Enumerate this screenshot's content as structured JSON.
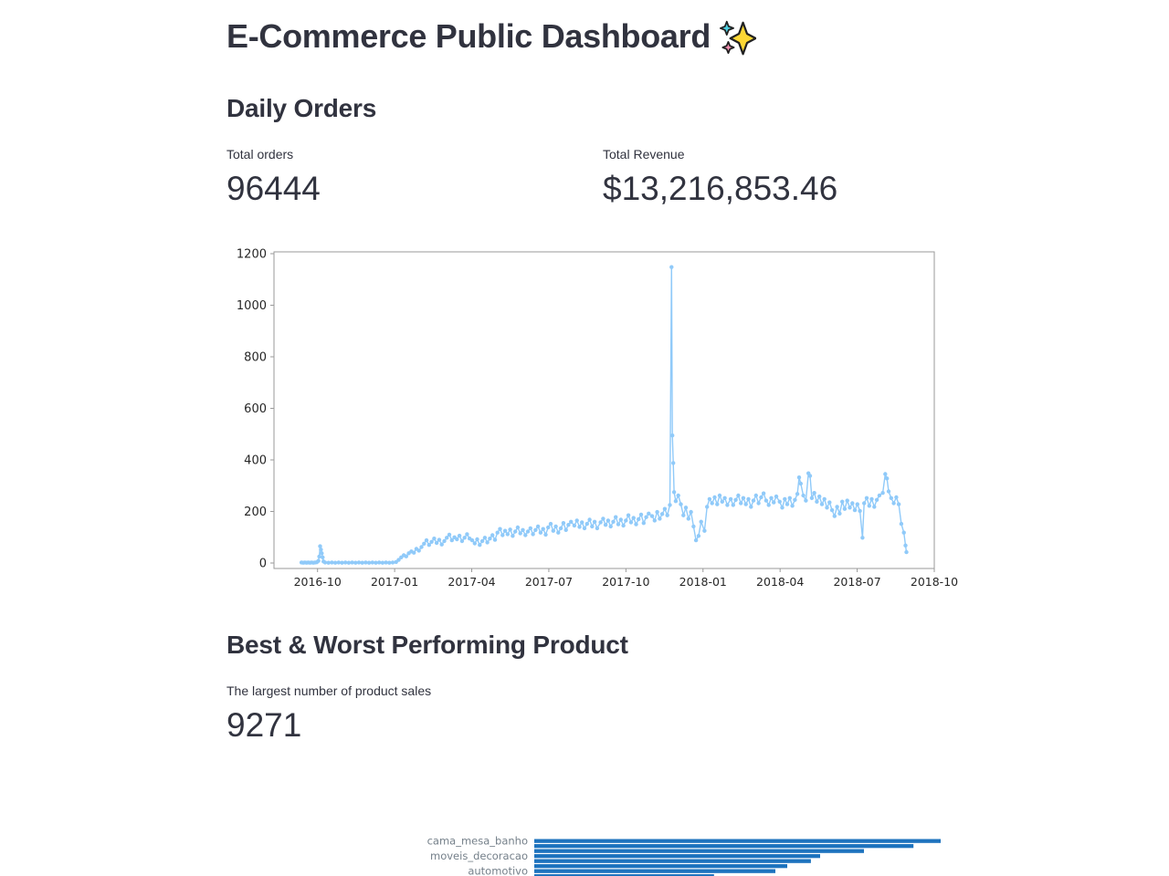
{
  "app": {
    "title": "E-Commerce Public Dashboard",
    "title_emoji": "sparkles"
  },
  "daily_orders": {
    "heading": "Daily Orders",
    "metrics": {
      "total_orders": {
        "label": "Total orders",
        "value": "96444"
      },
      "total_revenue": {
        "label": "Total Revenue",
        "value": "$13,216,853.46"
      }
    }
  },
  "best_worst": {
    "heading": "Best & Worst Performing Product",
    "metric": {
      "label": "The largest number of product sales",
      "value": "9271"
    }
  },
  "chart_data": [
    {
      "type": "line",
      "title": "",
      "color": "#90CAF9",
      "axis_color": "#9a9a9a",
      "tick_label_color": "#262626",
      "x_ticks": [
        "2016-10",
        "2017-01",
        "2017-04",
        "2017-07",
        "2017-10",
        "2018-01",
        "2018-04",
        "2018-07",
        "2018-10"
      ],
      "y_ticks": [
        0,
        200,
        400,
        600,
        800,
        1000,
        1200
      ],
      "ylim": [
        -20,
        1205
      ],
      "xlim": [
        "2016-08-20",
        "2018-10-01"
      ],
      "grid": false,
      "legend": "none",
      "points": [
        [
          "2016-09-12",
          2
        ],
        [
          "2016-09-14",
          1
        ],
        [
          "2016-09-16",
          2
        ],
        [
          "2016-09-18",
          1
        ],
        [
          "2016-09-20",
          2
        ],
        [
          "2016-09-22",
          1
        ],
        [
          "2016-09-24",
          2
        ],
        [
          "2016-09-26",
          1
        ],
        [
          "2016-09-28",
          2
        ],
        [
          "2016-09-30",
          3
        ],
        [
          "2016-10-02",
          8
        ],
        [
          "2016-10-03",
          25
        ],
        [
          "2016-10-04",
          65
        ],
        [
          "2016-10-05",
          52
        ],
        [
          "2016-10-06",
          38
        ],
        [
          "2016-10-07",
          22
        ],
        [
          "2016-10-08",
          6
        ],
        [
          "2016-10-10",
          2
        ],
        [
          "2016-10-14",
          1
        ],
        [
          "2016-10-18",
          2
        ],
        [
          "2016-10-22",
          1
        ],
        [
          "2016-10-26",
          2
        ],
        [
          "2016-10-30",
          1
        ],
        [
          "2016-11-03",
          2
        ],
        [
          "2016-11-07",
          1
        ],
        [
          "2016-11-11",
          2
        ],
        [
          "2016-11-15",
          1
        ],
        [
          "2016-11-19",
          2
        ],
        [
          "2016-11-23",
          1
        ],
        [
          "2016-11-27",
          2
        ],
        [
          "2016-12-01",
          1
        ],
        [
          "2016-12-05",
          2
        ],
        [
          "2016-12-09",
          1
        ],
        [
          "2016-12-13",
          2
        ],
        [
          "2016-12-17",
          1
        ],
        [
          "2016-12-21",
          2
        ],
        [
          "2016-12-25",
          1
        ],
        [
          "2016-12-29",
          2
        ],
        [
          "2017-01-02",
          4
        ],
        [
          "2017-01-05",
          12
        ],
        [
          "2017-01-08",
          22
        ],
        [
          "2017-01-11",
          30
        ],
        [
          "2017-01-14",
          26
        ],
        [
          "2017-01-17",
          38
        ],
        [
          "2017-01-20",
          45
        ],
        [
          "2017-01-23",
          40
        ],
        [
          "2017-01-26",
          55
        ],
        [
          "2017-01-29",
          48
        ],
        [
          "2017-02-01",
          62
        ],
        [
          "2017-02-04",
          75
        ],
        [
          "2017-02-07",
          88
        ],
        [
          "2017-02-10",
          70
        ],
        [
          "2017-02-13",
          82
        ],
        [
          "2017-02-16",
          95
        ],
        [
          "2017-02-19",
          78
        ],
        [
          "2017-02-22",
          90
        ],
        [
          "2017-02-25",
          72
        ],
        [
          "2017-02-28",
          85
        ],
        [
          "2017-03-03",
          98
        ],
        [
          "2017-03-06",
          110
        ],
        [
          "2017-03-09",
          88
        ],
        [
          "2017-03-12",
          100
        ],
        [
          "2017-03-15",
          92
        ],
        [
          "2017-03-18",
          106
        ],
        [
          "2017-03-21",
          85
        ],
        [
          "2017-03-24",
          98
        ],
        [
          "2017-03-27",
          112
        ],
        [
          "2017-03-30",
          95
        ],
        [
          "2017-04-02",
          88
        ],
        [
          "2017-04-05",
          76
        ],
        [
          "2017-04-08",
          92
        ],
        [
          "2017-04-11",
          70
        ],
        [
          "2017-04-14",
          85
        ],
        [
          "2017-04-17",
          98
        ],
        [
          "2017-04-20",
          80
        ],
        [
          "2017-04-23",
          95
        ],
        [
          "2017-04-26",
          108
        ],
        [
          "2017-04-29",
          90
        ],
        [
          "2017-05-02",
          118
        ],
        [
          "2017-05-05",
          132
        ],
        [
          "2017-05-08",
          108
        ],
        [
          "2017-05-11",
          125
        ],
        [
          "2017-05-14",
          112
        ],
        [
          "2017-05-17",
          130
        ],
        [
          "2017-05-20",
          105
        ],
        [
          "2017-05-23",
          122
        ],
        [
          "2017-05-26",
          138
        ],
        [
          "2017-05-29",
          115
        ],
        [
          "2017-06-01",
          128
        ],
        [
          "2017-06-04",
          108
        ],
        [
          "2017-06-07",
          122
        ],
        [
          "2017-06-10",
          135
        ],
        [
          "2017-06-13",
          112
        ],
        [
          "2017-06-16",
          128
        ],
        [
          "2017-06-19",
          142
        ],
        [
          "2017-06-22",
          118
        ],
        [
          "2017-06-25",
          132
        ],
        [
          "2017-06-28",
          110
        ],
        [
          "2017-07-01",
          138
        ],
        [
          "2017-07-04",
          152
        ],
        [
          "2017-07-07",
          125
        ],
        [
          "2017-07-10",
          142
        ],
        [
          "2017-07-13",
          118
        ],
        [
          "2017-07-16",
          135
        ],
        [
          "2017-07-19",
          155
        ],
        [
          "2017-07-22",
          128
        ],
        [
          "2017-07-25",
          148
        ],
        [
          "2017-07-28",
          160
        ],
        [
          "2017-08-01",
          145
        ],
        [
          "2017-08-04",
          165
        ],
        [
          "2017-08-07",
          140
        ],
        [
          "2017-08-10",
          158
        ],
        [
          "2017-08-13",
          135
        ],
        [
          "2017-08-16",
          152
        ],
        [
          "2017-08-19",
          168
        ],
        [
          "2017-08-22",
          142
        ],
        [
          "2017-08-25",
          160
        ],
        [
          "2017-08-28",
          135
        ],
        [
          "2017-09-01",
          158
        ],
        [
          "2017-09-04",
          172
        ],
        [
          "2017-09-07",
          148
        ],
        [
          "2017-09-10",
          165
        ],
        [
          "2017-09-13",
          142
        ],
        [
          "2017-09-16",
          160
        ],
        [
          "2017-09-19",
          178
        ],
        [
          "2017-09-22",
          150
        ],
        [
          "2017-09-25",
          168
        ],
        [
          "2017-09-28",
          145
        ],
        [
          "2017-10-01",
          165
        ],
        [
          "2017-10-04",
          185
        ],
        [
          "2017-10-07",
          158
        ],
        [
          "2017-10-10",
          175
        ],
        [
          "2017-10-13",
          150
        ],
        [
          "2017-10-16",
          170
        ],
        [
          "2017-10-19",
          188
        ],
        [
          "2017-10-22",
          155
        ],
        [
          "2017-10-25",
          178
        ],
        [
          "2017-10-28",
          192
        ],
        [
          "2017-11-01",
          182
        ],
        [
          "2017-11-04",
          165
        ],
        [
          "2017-11-07",
          198
        ],
        [
          "2017-11-10",
          172
        ],
        [
          "2017-11-13",
          190
        ],
        [
          "2017-11-16",
          210
        ],
        [
          "2017-11-19",
          185
        ],
        [
          "2017-11-22",
          225
        ],
        [
          "2017-11-24",
          1148
        ],
        [
          "2017-11-25",
          495
        ],
        [
          "2017-11-26",
          388
        ],
        [
          "2017-11-27",
          275
        ],
        [
          "2017-11-29",
          240
        ],
        [
          "2017-12-02",
          262
        ],
        [
          "2017-12-05",
          228
        ],
        [
          "2017-12-08",
          185
        ],
        [
          "2017-12-11",
          215
        ],
        [
          "2017-12-14",
          172
        ],
        [
          "2017-12-17",
          198
        ],
        [
          "2017-12-20",
          142
        ],
        [
          "2017-12-23",
          88
        ],
        [
          "2017-12-26",
          105
        ],
        [
          "2017-12-29",
          160
        ],
        [
          "2018-01-02",
          125
        ],
        [
          "2018-01-05",
          218
        ],
        [
          "2018-01-08",
          248
        ],
        [
          "2018-01-11",
          232
        ],
        [
          "2018-01-14",
          255
        ],
        [
          "2018-01-17",
          228
        ],
        [
          "2018-01-20",
          262
        ],
        [
          "2018-01-23",
          238
        ],
        [
          "2018-01-26",
          252
        ],
        [
          "2018-01-29",
          225
        ],
        [
          "2018-02-02",
          248
        ],
        [
          "2018-02-05",
          225
        ],
        [
          "2018-02-08",
          245
        ],
        [
          "2018-02-11",
          262
        ],
        [
          "2018-02-14",
          232
        ],
        [
          "2018-02-17",
          252
        ],
        [
          "2018-02-20",
          228
        ],
        [
          "2018-02-23",
          248
        ],
        [
          "2018-02-26",
          218
        ],
        [
          "2018-03-01",
          242
        ],
        [
          "2018-03-04",
          262
        ],
        [
          "2018-03-07",
          232
        ],
        [
          "2018-03-10",
          255
        ],
        [
          "2018-03-13",
          270
        ],
        [
          "2018-03-16",
          242
        ],
        [
          "2018-03-19",
          225
        ],
        [
          "2018-03-22",
          252
        ],
        [
          "2018-03-25",
          235
        ],
        [
          "2018-03-28",
          258
        ],
        [
          "2018-04-01",
          238
        ],
        [
          "2018-04-04",
          215
        ],
        [
          "2018-04-07",
          248
        ],
        [
          "2018-04-10",
          228
        ],
        [
          "2018-04-13",
          252
        ],
        [
          "2018-04-16",
          222
        ],
        [
          "2018-04-19",
          245
        ],
        [
          "2018-04-22",
          268
        ],
        [
          "2018-04-24",
          332
        ],
        [
          "2018-04-26",
          308
        ],
        [
          "2018-04-29",
          262
        ],
        [
          "2018-05-02",
          242
        ],
        [
          "2018-05-05",
          348
        ],
        [
          "2018-05-07",
          338
        ],
        [
          "2018-05-09",
          252
        ],
        [
          "2018-05-12",
          272
        ],
        [
          "2018-05-15",
          238
        ],
        [
          "2018-05-18",
          258
        ],
        [
          "2018-05-21",
          228
        ],
        [
          "2018-05-24",
          248
        ],
        [
          "2018-05-27",
          215
        ],
        [
          "2018-05-30",
          235
        ],
        [
          "2018-06-02",
          205
        ],
        [
          "2018-06-05",
          182
        ],
        [
          "2018-06-08",
          218
        ],
        [
          "2018-06-11",
          192
        ],
        [
          "2018-06-14",
          238
        ],
        [
          "2018-06-17",
          210
        ],
        [
          "2018-06-20",
          242
        ],
        [
          "2018-06-23",
          215
        ],
        [
          "2018-06-26",
          232
        ],
        [
          "2018-06-29",
          205
        ],
        [
          "2018-07-02",
          228
        ],
        [
          "2018-07-05",
          202
        ],
        [
          "2018-07-08",
          98
        ],
        [
          "2018-07-10",
          232
        ],
        [
          "2018-07-13",
          252
        ],
        [
          "2018-07-16",
          222
        ],
        [
          "2018-07-19",
          248
        ],
        [
          "2018-07-22",
          218
        ],
        [
          "2018-07-25",
          245
        ],
        [
          "2018-07-28",
          262
        ],
        [
          "2018-08-01",
          272
        ],
        [
          "2018-08-04",
          345
        ],
        [
          "2018-08-06",
          328
        ],
        [
          "2018-08-08",
          278
        ],
        [
          "2018-08-11",
          252
        ],
        [
          "2018-08-14",
          232
        ],
        [
          "2018-08-17",
          255
        ],
        [
          "2018-08-20",
          228
        ],
        [
          "2018-08-23",
          152
        ],
        [
          "2018-08-26",
          118
        ],
        [
          "2018-08-28",
          68
        ],
        [
          "2018-08-29",
          42
        ]
      ]
    },
    {
      "type": "bar",
      "orientation": "horizontal",
      "title": "",
      "color": "#1E73BE",
      "label_color": "#75808a",
      "note": "chart partially visible, clipped by bottom edge of viewport",
      "bars": [
        {
          "label": "cama_mesa_banho",
          "value": 9271
        },
        {
          "label": "",
          "value": 8650
        },
        {
          "label": "",
          "value": 7520
        },
        {
          "label": "moveis_decoracao",
          "value": 6520
        },
        {
          "label": "",
          "value": 6310
        },
        {
          "label": "",
          "value": 5770
        },
        {
          "label": "automotivo",
          "value": 5500
        },
        {
          "label": "",
          "value": 4100
        }
      ]
    }
  ]
}
